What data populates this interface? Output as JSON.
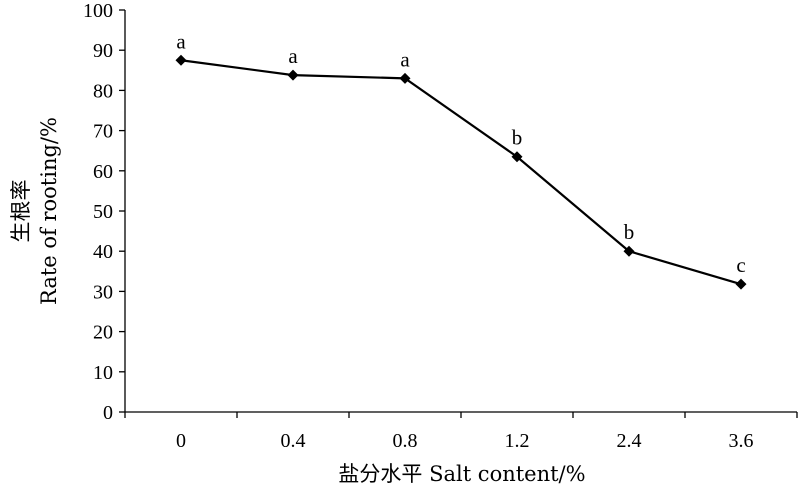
{
  "chart_data": {
    "type": "line",
    "categories": [
      "0",
      "0.4",
      "0.8",
      "1.2",
      "2.4",
      "3.6"
    ],
    "series": [
      {
        "values": [
          87.5,
          83.8,
          83.0,
          63.5,
          40.0,
          31.8
        ],
        "labels": [
          "a",
          "a",
          "a",
          "b",
          "b",
          "c"
        ]
      }
    ],
    "ylim": [
      0,
      100
    ],
    "yticks": [
      0,
      10,
      20,
      30,
      40,
      50,
      60,
      70,
      80,
      90,
      100
    ],
    "xlabel": "盐分水平 Salt content/%",
    "ylabel_cn": "生根率",
    "ylabel": "Rate of rooting/%",
    "grid": false,
    "legend": "none",
    "marker": "diamond",
    "line_color": "#000000"
  }
}
